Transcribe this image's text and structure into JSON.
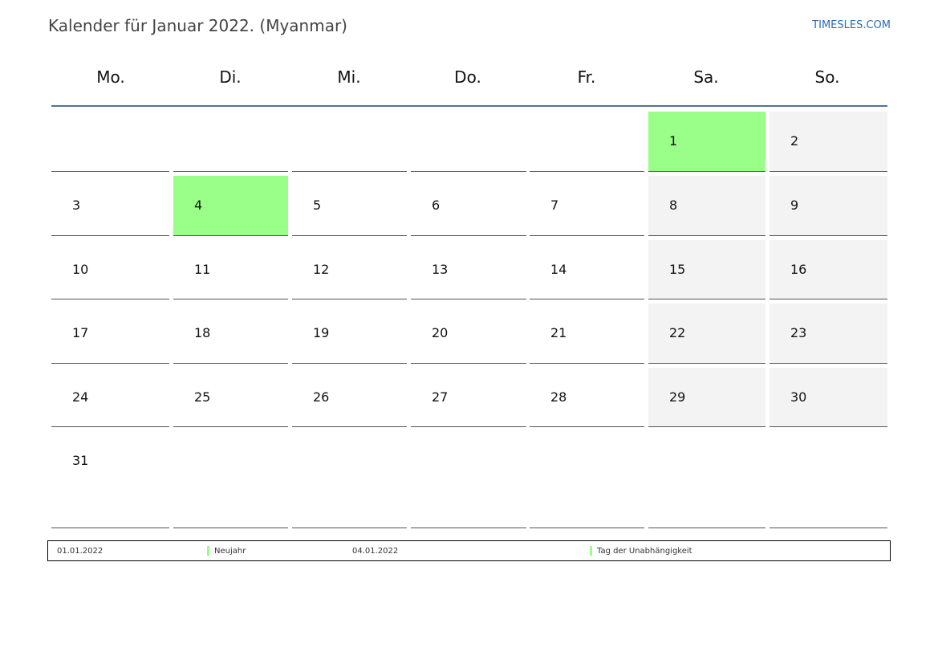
{
  "title": "Kalender für Januar 2022. (Myanmar)",
  "site": "TIMESLES.COM",
  "weekdays": [
    "Mo.",
    "Di.",
    "Mi.",
    "Do.",
    "Fr.",
    "Sa.",
    "So."
  ],
  "colors": {
    "holiday": "#99ff88",
    "weekend": "#f3f3f3",
    "header_line": "#55709a",
    "link": "#2a6db3"
  },
  "weeks": [
    [
      {
        "day": "",
        "type": "empty"
      },
      {
        "day": "",
        "type": "empty"
      },
      {
        "day": "",
        "type": "empty"
      },
      {
        "day": "",
        "type": "empty"
      },
      {
        "day": "",
        "type": "empty"
      },
      {
        "day": "1",
        "type": "holiday"
      },
      {
        "day": "2",
        "type": "weekend"
      }
    ],
    [
      {
        "day": "3",
        "type": "normal"
      },
      {
        "day": "4",
        "type": "holiday"
      },
      {
        "day": "5",
        "type": "normal"
      },
      {
        "day": "6",
        "type": "normal"
      },
      {
        "day": "7",
        "type": "normal"
      },
      {
        "day": "8",
        "type": "weekend"
      },
      {
        "day": "9",
        "type": "weekend"
      }
    ],
    [
      {
        "day": "10",
        "type": "normal"
      },
      {
        "day": "11",
        "type": "normal"
      },
      {
        "day": "12",
        "type": "normal"
      },
      {
        "day": "13",
        "type": "normal"
      },
      {
        "day": "14",
        "type": "normal"
      },
      {
        "day": "15",
        "type": "weekend"
      },
      {
        "day": "16",
        "type": "weekend"
      }
    ],
    [
      {
        "day": "17",
        "type": "normal"
      },
      {
        "day": "18",
        "type": "normal"
      },
      {
        "day": "19",
        "type": "normal"
      },
      {
        "day": "20",
        "type": "normal"
      },
      {
        "day": "21",
        "type": "normal"
      },
      {
        "day": "22",
        "type": "weekend"
      },
      {
        "day": "23",
        "type": "weekend"
      }
    ],
    [
      {
        "day": "24",
        "type": "normal"
      },
      {
        "day": "25",
        "type": "normal"
      },
      {
        "day": "26",
        "type": "normal"
      },
      {
        "day": "27",
        "type": "normal"
      },
      {
        "day": "28",
        "type": "normal"
      },
      {
        "day": "29",
        "type": "weekend"
      },
      {
        "day": "30",
        "type": "weekend"
      }
    ],
    [
      {
        "day": "31",
        "type": "normal"
      },
      {
        "day": "",
        "type": "empty"
      },
      {
        "day": "",
        "type": "empty"
      },
      {
        "day": "",
        "type": "empty"
      },
      {
        "day": "",
        "type": "empty"
      },
      {
        "day": "",
        "type": "empty"
      },
      {
        "day": "",
        "type": "empty"
      }
    ]
  ],
  "holidays": [
    {
      "date": "01.01.2022",
      "name": "Neujahr"
    },
    {
      "date": "04.01.2022",
      "name": "Tag der Unabhängigkeit"
    }
  ]
}
